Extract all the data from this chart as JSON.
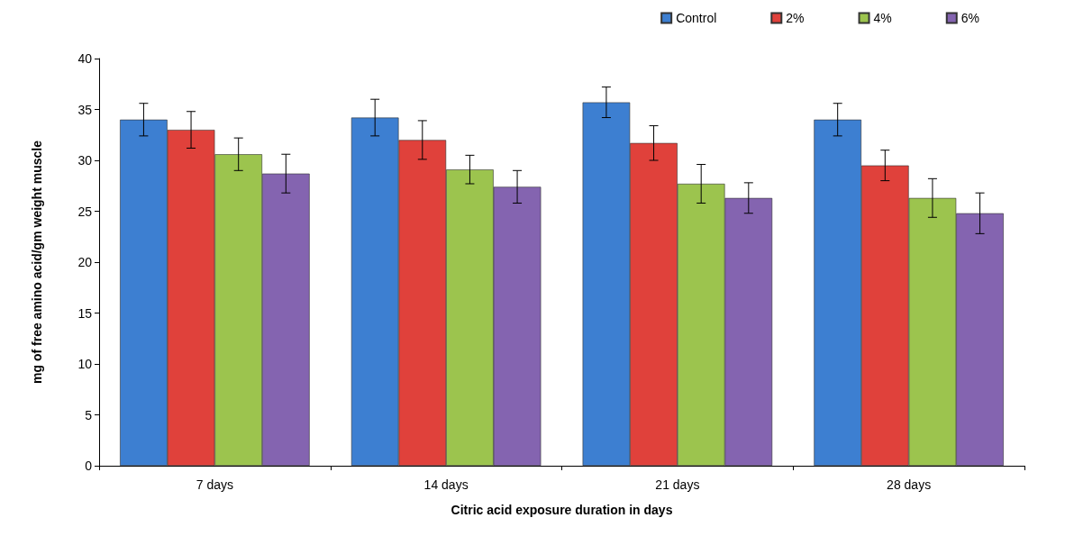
{
  "chart_data": {
    "type": "bar",
    "xlabel": "Citric acid exposure duration in days",
    "ylabel": "mg of free amino acid/gm weight muscle",
    "categories": [
      "7 days",
      "14 days",
      "21 days",
      "28 days"
    ],
    "series": [
      {
        "name": "Control",
        "color": "#3d7fd1",
        "values": [
          34.0,
          34.2,
          35.7,
          34.0
        ],
        "errors": [
          1.6,
          1.8,
          1.5,
          1.6
        ]
      },
      {
        "name": "2%",
        "color": "#e0413b",
        "values": [
          33.0,
          32.0,
          31.7,
          29.5
        ],
        "errors": [
          1.8,
          1.9,
          1.7,
          1.5
        ]
      },
      {
        "name": "4%",
        "color": "#9cc44e",
        "values": [
          30.6,
          29.1,
          27.7,
          26.3
        ],
        "errors": [
          1.6,
          1.4,
          1.9,
          1.9
        ]
      },
      {
        "name": "6%",
        "color": "#8464b0",
        "values": [
          28.7,
          27.4,
          26.3,
          24.8
        ],
        "errors": [
          1.9,
          1.6,
          1.5,
          2.0
        ]
      }
    ],
    "ylim": [
      0,
      40
    ],
    "yticks": [
      0,
      5,
      10,
      15,
      20,
      25,
      30,
      35,
      40
    ],
    "grid": false,
    "legend": "top right"
  }
}
